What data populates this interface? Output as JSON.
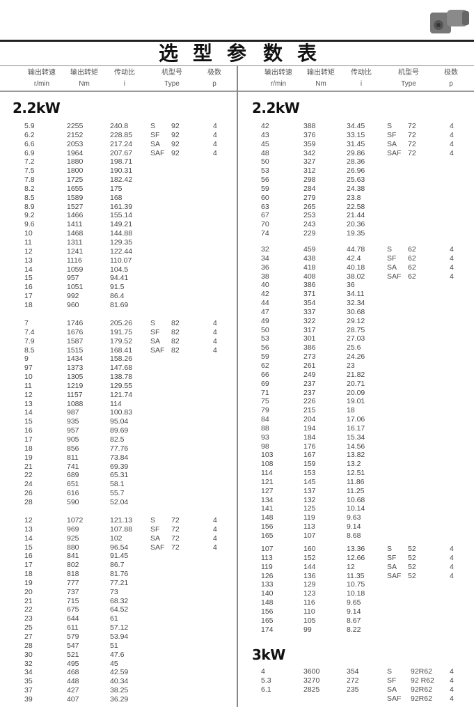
{
  "title_chars": [
    "选",
    "型",
    "参",
    "数",
    "表"
  ],
  "headers": {
    "speed": {
      "cn": "输出转速",
      "unit": "r/min"
    },
    "torque": {
      "cn": "输出转矩",
      "unit": "Nm"
    },
    "ratio": {
      "cn": "传动比",
      "unit": "i"
    },
    "type": {
      "cn": "机型号",
      "unit": "Type"
    },
    "poles": {
      "cn": "极数",
      "unit": "p"
    }
  },
  "left": {
    "heading": "2.2kW",
    "blocks": [
      {
        "rows": [
          [
            "5.9",
            "2255",
            "240.8",
            "S",
            "92",
            "4"
          ],
          [
            "6.2",
            "2152",
            "228.85",
            "SF",
            "92",
            "4"
          ],
          [
            "6.6",
            "2053",
            "217.24",
            "SA",
            "92",
            "4"
          ],
          [
            "6.9",
            "1964",
            "207.67",
            "SAF",
            "92",
            "4"
          ],
          [
            "7.2",
            "1880",
            "198.71",
            "",
            "",
            ""
          ],
          [
            "7.5",
            "1800",
            "190.31",
            "",
            "",
            ""
          ],
          [
            "7.8",
            "1725",
            "182.42",
            "",
            "",
            ""
          ],
          [
            "8.2",
            "1655",
            "175",
            "",
            "",
            ""
          ],
          [
            "8.5",
            "1589",
            "168",
            "",
            "",
            ""
          ],
          [
            "8.9",
            "1527",
            "161.39",
            "",
            "",
            ""
          ],
          [
            "9.2",
            "1466",
            "155.14",
            "",
            "",
            ""
          ],
          [
            "9.6",
            "1411",
            "149.21",
            "",
            "",
            ""
          ],
          [
            "10",
            "1468",
            "144.88",
            "",
            "",
            ""
          ],
          [
            "11",
            "1311",
            "129.35",
            "",
            "",
            ""
          ],
          [
            "12",
            "1241",
            "122.44",
            "",
            "",
            ""
          ],
          [
            "13",
            "1116",
            "110.07",
            "",
            "",
            ""
          ],
          [
            "14",
            "1059",
            "104.5",
            "",
            "",
            ""
          ],
          [
            "15",
            "957",
            "94.41",
            "",
            "",
            ""
          ],
          [
            "16",
            "1051",
            "91.5",
            "",
            "",
            ""
          ],
          [
            "17",
            "992",
            "86.4",
            "",
            "",
            ""
          ],
          [
            "18",
            "960",
            "81.69",
            "",
            "",
            ""
          ]
        ]
      },
      {
        "rows": [
          [
            "7",
            "1746",
            "205.26",
            "S",
            "82",
            "4"
          ],
          [
            "7.4",
            "1676",
            "191.75",
            "SF",
            "82",
            "4"
          ],
          [
            "7.9",
            "1587",
            "179.52",
            "SA",
            "82",
            "4"
          ],
          [
            "8.5",
            "1515",
            "168.41",
            "SAF",
            "82",
            "4"
          ],
          [
            "9",
            "1434",
            "158.26",
            "",
            "",
            ""
          ],
          [
            "97",
            "1373",
            "147.68",
            "",
            "",
            ""
          ],
          [
            "10",
            "1305",
            "138.78",
            "",
            "",
            ""
          ],
          [
            "11",
            "1219",
            "129.55",
            "",
            "",
            ""
          ],
          [
            "12",
            "1157",
            "121.74",
            "",
            "",
            ""
          ],
          [
            "13",
            "1088",
            "114",
            "",
            "",
            ""
          ],
          [
            "14",
            "987",
            "100.83",
            "",
            "",
            ""
          ],
          [
            "15",
            "935",
            "95.04",
            "",
            "",
            ""
          ],
          [
            "16",
            "957",
            "89.69",
            "",
            "",
            ""
          ],
          [
            "17",
            "905",
            "82.5",
            "",
            "",
            ""
          ],
          [
            "18",
            "856",
            "77.76",
            "",
            "",
            ""
          ],
          [
            "19",
            "811",
            "73.84",
            "",
            "",
            ""
          ],
          [
            "21",
            "741",
            "69.39",
            "",
            "",
            ""
          ],
          [
            "22",
            "689",
            "65.31",
            "",
            "",
            ""
          ],
          [
            "24",
            "651",
            "58.1",
            "",
            "",
            ""
          ],
          [
            "26",
            "616",
            "55.7",
            "",
            "",
            ""
          ],
          [
            "28",
            "590",
            "52.04",
            "",
            "",
            ""
          ]
        ]
      },
      {
        "rows": [
          [
            "12",
            "1072",
            "121.13",
            "S",
            "72",
            "4"
          ],
          [
            "13",
            "969",
            "107.88",
            "SF",
            "72",
            "4"
          ],
          [
            "14",
            "925",
            "102",
            "SA",
            "72",
            "4"
          ],
          [
            "15",
            "880",
            "96.54",
            "SAF",
            "72",
            "4"
          ],
          [
            "16",
            "841",
            "91.45",
            "",
            "",
            ""
          ],
          [
            "17",
            "802",
            "86.7",
            "",
            "",
            ""
          ],
          [
            "18",
            "818",
            "81.76",
            "",
            "",
            ""
          ],
          [
            "19",
            "777",
            "77.21",
            "",
            "",
            ""
          ],
          [
            "20",
            "737",
            "73",
            "",
            "",
            ""
          ],
          [
            "21",
            "715",
            "68.32",
            "",
            "",
            ""
          ],
          [
            "22",
            "675",
            "64.52",
            "",
            "",
            ""
          ],
          [
            "23",
            "644",
            "61",
            "",
            "",
            ""
          ],
          [
            "25",
            "611",
            "57.12",
            "",
            "",
            ""
          ],
          [
            "27",
            "579",
            "53.94",
            "",
            "",
            ""
          ],
          [
            "28",
            "547",
            "51",
            "",
            "",
            ""
          ],
          [
            "30",
            "521",
            "47.6",
            "",
            "",
            ""
          ],
          [
            "32",
            "495",
            "45",
            "",
            "",
            ""
          ],
          [
            "34",
            "468",
            "42.59",
            "",
            "",
            ""
          ],
          [
            "35",
            "448",
            "40.34",
            "",
            "",
            ""
          ],
          [
            "37",
            "427",
            "38.25",
            "",
            "",
            ""
          ],
          [
            "39",
            "407",
            "36.29",
            "",
            "",
            ""
          ]
        ]
      }
    ]
  },
  "right": {
    "heading": "2.2kW",
    "blocks": [
      {
        "rows": [
          [
            "42",
            "388",
            "34.45",
            "S",
            "72",
            "4"
          ],
          [
            "43",
            "376",
            "33.15",
            "SF",
            "72",
            "4"
          ],
          [
            "45",
            "359",
            "31.45",
            "SA",
            "72",
            "4"
          ],
          [
            "48",
            "342",
            "29.86",
            "SAF",
            "72",
            "4"
          ],
          [
            "50",
            "327",
            "28.36",
            "",
            "",
            ""
          ],
          [
            "53",
            "312",
            "26.96",
            "",
            "",
            ""
          ],
          [
            "56",
            "298",
            "25.63",
            "",
            "",
            ""
          ],
          [
            "59",
            "284",
            "24.38",
            "",
            "",
            ""
          ],
          [
            "60",
            "279",
            "23.8",
            "",
            "",
            ""
          ],
          [
            "63",
            "265",
            "22.58",
            "",
            "",
            ""
          ],
          [
            "67",
            "253",
            "21.44",
            "",
            "",
            ""
          ],
          [
            "70",
            "243",
            "20.36",
            "",
            "",
            ""
          ],
          [
            "74",
            "229",
            "19.35",
            "",
            "",
            ""
          ]
        ]
      },
      {
        "rows": [
          [
            "32",
            "459",
            "44.78",
            "S",
            "62",
            "4"
          ],
          [
            "34",
            "438",
            "42.4",
            "SF",
            "62",
            "4"
          ],
          [
            "36",
            "418",
            "40.18",
            "SA",
            "62",
            "4"
          ],
          [
            "38",
            "408",
            "38.02",
            "SAF",
            "62",
            "4"
          ],
          [
            "40",
            "386",
            "36",
            "",
            "",
            ""
          ],
          [
            "42",
            "371",
            "34.11",
            "",
            "",
            ""
          ],
          [
            "44",
            "354",
            "32.34",
            "",
            "",
            ""
          ],
          [
            "47",
            "337",
            "30.68",
            "",
            "",
            ""
          ],
          [
            "49",
            "322",
            "29.12",
            "",
            "",
            ""
          ],
          [
            "50",
            "317",
            "28.75",
            "",
            "",
            ""
          ],
          [
            "53",
            "301",
            "27.03",
            "",
            "",
            ""
          ],
          [
            "56",
            "386",
            "25.6",
            "",
            "",
            ""
          ],
          [
            "59",
            "273",
            "24.26",
            "",
            "",
            ""
          ],
          [
            "62",
            "261",
            "23",
            "",
            "",
            ""
          ],
          [
            "66",
            "249",
            "21.82",
            "",
            "",
            ""
          ],
          [
            "69",
            "237",
            "20.71",
            "",
            "",
            ""
          ],
          [
            "71",
            "237",
            "20.09",
            "",
            "",
            ""
          ],
          [
            "75",
            "226",
            "19.01",
            "",
            "",
            ""
          ],
          [
            "79",
            "215",
            "18",
            "",
            "",
            ""
          ],
          [
            "84",
            "204",
            "17.06",
            "",
            "",
            ""
          ],
          [
            "88",
            "194",
            "16.17",
            "",
            "",
            ""
          ],
          [
            "93",
            "184",
            "15.34",
            "",
            "",
            ""
          ],
          [
            "98",
            "176",
            "14.56",
            "",
            "",
            ""
          ],
          [
            "103",
            "167",
            "13.82",
            "",
            "",
            ""
          ],
          [
            "108",
            "159",
            "13.2",
            "",
            "",
            ""
          ],
          [
            "114",
            "153",
            "12.51",
            "",
            "",
            ""
          ],
          [
            "121",
            "145",
            "11.86",
            "",
            "",
            ""
          ],
          [
            "127",
            "137",
            "11.25",
            "",
            "",
            ""
          ],
          [
            "134",
            "132",
            "10.68",
            "",
            "",
            ""
          ],
          [
            "141",
            "125",
            "10.14",
            "",
            "",
            ""
          ],
          [
            "148",
            "119",
            "9.63",
            "",
            "",
            ""
          ],
          [
            "156",
            "113",
            "9.14",
            "",
            "",
            ""
          ],
          [
            "165",
            "107",
            "8.68",
            "",
            "",
            ""
          ]
        ]
      },
      {
        "rows": [
          [
            "107",
            "160",
            "13.36",
            "S",
            "52",
            "4"
          ],
          [
            "113",
            "152",
            "12.66",
            "SF",
            "52",
            "4"
          ],
          [
            "119",
            "144",
            "12",
            "SA",
            "52",
            "4"
          ],
          [
            "126",
            "136",
            "11.35",
            "SAF",
            "52",
            "4"
          ],
          [
            "133",
            "129",
            "10.75",
            "",
            "",
            ""
          ],
          [
            "140",
            "123",
            "10.18",
            "",
            "",
            ""
          ],
          [
            "148",
            "116",
            "9.65",
            "",
            "",
            ""
          ],
          [
            "156",
            "110",
            "9.14",
            "",
            "",
            ""
          ],
          [
            "165",
            "105",
            "8.67",
            "",
            "",
            ""
          ],
          [
            "174",
            "99",
            "8.22",
            "",
            "",
            ""
          ]
        ]
      }
    ],
    "heading2": "3kW",
    "blocks2": [
      {
        "rows": [
          [
            "4",
            "3600",
            "354",
            "S",
            "92R62",
            "4"
          ],
          [
            "5.3",
            "3270",
            "272",
            "SF",
            "92 R62",
            "4"
          ],
          [
            "6.1",
            "2825",
            "235",
            "SA",
            "92R62",
            "4"
          ],
          [
            "",
            "",
            "",
            "SAF",
            "92R62",
            "4"
          ]
        ]
      }
    ]
  }
}
